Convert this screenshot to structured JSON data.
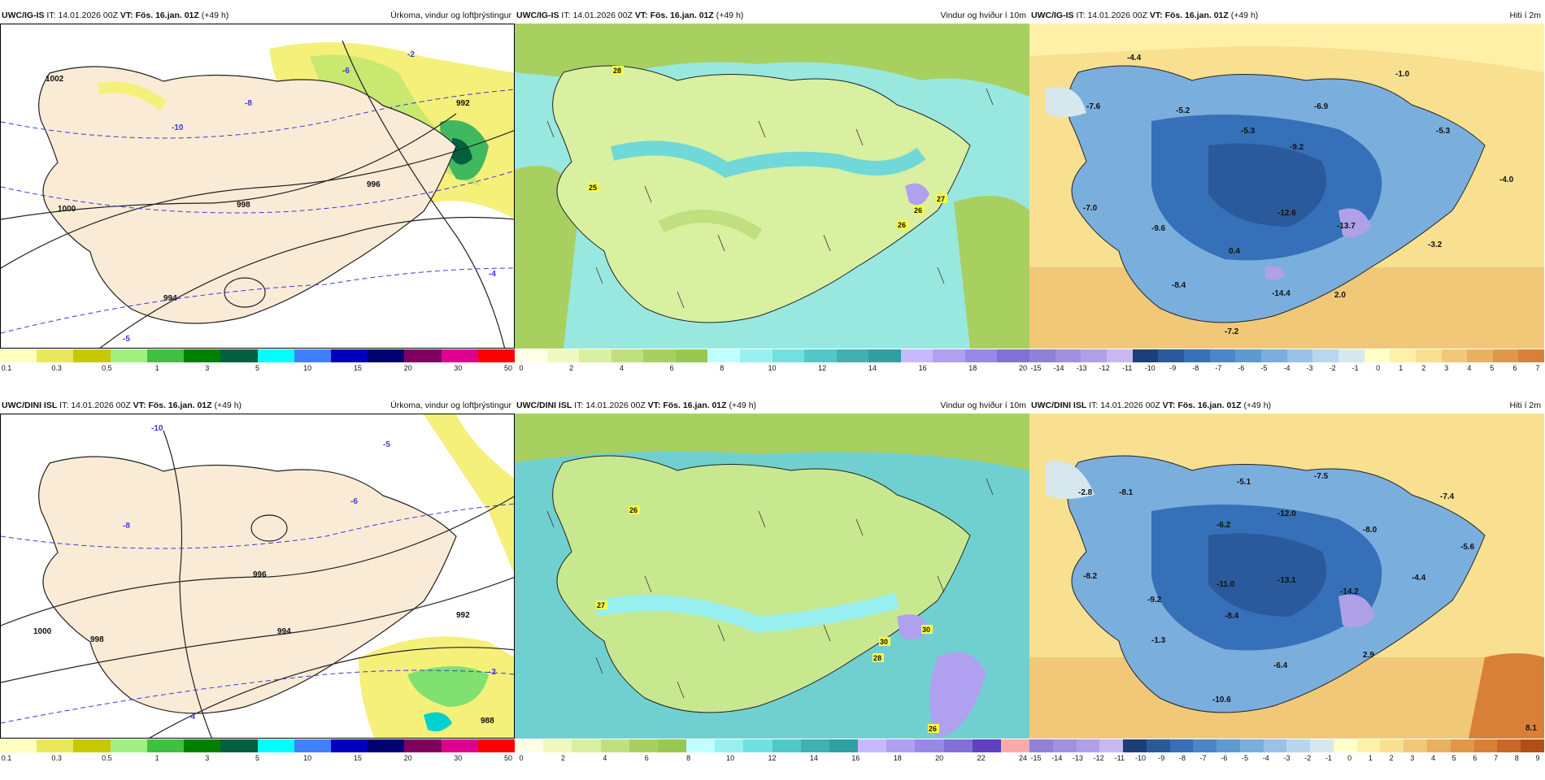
{
  "rows": [
    {
      "model": "UWC/IG-IS",
      "init_label": "IT:",
      "init_time": "14.01.2026 00Z",
      "valid_label": "VT:",
      "valid_time": "Fös. 16.jan. 01Z",
      "lead": "(+49 h)",
      "panels": {
        "precip": {
          "title": "Úrkoma, vindur og loftþrýstingur",
          "isobars": [
            "1002",
            "1000",
            "998",
            "996",
            "994",
            "992"
          ],
          "temps": [
            "-10",
            "-8",
            "-6",
            "-4",
            "-2",
            "-5"
          ]
        },
        "wind": {
          "title": "Vindur og hviður í 10m",
          "gusts": [
            "28",
            "25",
            "27",
            "26",
            "26"
          ]
        },
        "temp": {
          "title": "Hiti í 2m",
          "labels": [
            "-4.4",
            "-7.6",
            "-5.2",
            "-5.3",
            "-6.9",
            "-9.2",
            "-1.0",
            "-5.3",
            "-4.0",
            "-7.0",
            "-9.6",
            "-12.6",
            "-13.7",
            "0.4",
            "-3.2",
            "-8.4",
            "-14.4",
            "2.0",
            "-7.2"
          ]
        }
      }
    },
    {
      "model": "UWC/DINI ISL",
      "init_label": "IT:",
      "init_time": "14.01.2026 00Z",
      "valid_label": "VT:",
      "valid_time": "Fös. 16.jan. 01Z",
      "lead": "(+49 h)",
      "panels": {
        "precip": {
          "title": "Úrkoma, vindur og loftþrýstingur",
          "isobars": [
            "1000",
            "998",
            "996",
            "994",
            "992",
            "988"
          ],
          "temps": [
            "-10",
            "-8",
            "-6",
            "-4",
            "-2",
            "-5"
          ]
        },
        "wind": {
          "title": "Vindur og hviður í 10m",
          "gusts": [
            "26",
            "27",
            "30",
            "30",
            "28",
            "26"
          ]
        },
        "temp": {
          "title": "Hiti í 2m",
          "labels": [
            "-2.8",
            "-8.1",
            "-5.1",
            "-7.5",
            "-12.0",
            "-6.2",
            "-8.0",
            "-7.4",
            "-5.6",
            "-8.2",
            "-11.0",
            "-13.1",
            "-14.2",
            "-4.4",
            "-9.2",
            "-8.4",
            "-1.3",
            "-6.4",
            "2.9",
            "-10.6",
            "8.1"
          ]
        }
      }
    }
  ],
  "colorbars": {
    "precip": {
      "colors": [
        "#ffffc0",
        "#e8e85a",
        "#c8c800",
        "#a0f080",
        "#40c040",
        "#008000",
        "#006040",
        "#00ffff",
        "#4080ff",
        "#0000c0",
        "#000070",
        "#800060",
        "#e00090",
        "#ff0000"
      ],
      "ticks": [
        "0.1",
        "0.3",
        "0.5",
        "1",
        "3",
        "5",
        "10",
        "15",
        "20",
        "30",
        "50"
      ]
    },
    "wind_top": {
      "colors": [
        "#ffffe8",
        "#f0f8c0",
        "#d8f0a0",
        "#c0e080",
        "#a8d060",
        "#98c850",
        "#c0ffff",
        "#98f0f0",
        "#70e0e0",
        "#50c8c8",
        "#40b0b0",
        "#30a0a0",
        "#c8b8ff",
        "#b0a0f0",
        "#9888e8",
        "#8070d8"
      ],
      "ticks": [
        "0",
        "2",
        "4",
        "6",
        "8",
        "10",
        "12",
        "14",
        "16",
        "18",
        "20"
      ]
    },
    "wind_bottom": {
      "colors": [
        "#ffffe8",
        "#f0f8c0",
        "#d8f0a0",
        "#c0e080",
        "#a8d060",
        "#98c850",
        "#c0ffff",
        "#98f0f0",
        "#70e0e0",
        "#50c8c8",
        "#40b0b0",
        "#30a0a0",
        "#c8b8ff",
        "#b0a0f0",
        "#9888e8",
        "#8070d8",
        "#6040c0",
        "#ffa8a8"
      ],
      "ticks": [
        "0",
        "2",
        "4",
        "6",
        "8",
        "10",
        "12",
        "14",
        "16",
        "18",
        "20",
        "22",
        "24"
      ]
    },
    "temp_top": {
      "colors": [
        "#9080d8",
        "#a090e0",
        "#b0a0e8",
        "#c8b8f0",
        "#1c3f7a",
        "#2a5a9c",
        "#3570b8",
        "#4a86c8",
        "#5e9ad2",
        "#7aaedd",
        "#98c2e6",
        "#b8d6ee",
        "#d6e8ee",
        "#ffffc8",
        "#fff0a8",
        "#f8e090",
        "#f0c878",
        "#e8b060",
        "#e09848",
        "#d88038"
      ],
      "ticks": [
        "-15",
        "-14",
        "-13",
        "-12",
        "-11",
        "-10",
        "-9",
        "-8",
        "-7",
        "-6",
        "-5",
        "-4",
        "-3",
        "-2",
        "-1",
        "0",
        "1",
        "2",
        "3",
        "4",
        "5",
        "6",
        "7"
      ]
    },
    "temp_bottom": {
      "colors": [
        "#9080d8",
        "#a090e0",
        "#b0a0e8",
        "#c8b8f0",
        "#1c3f7a",
        "#2a5a9c",
        "#3570b8",
        "#4a86c8",
        "#5e9ad2",
        "#7aaedd",
        "#98c2e6",
        "#b8d6ee",
        "#d6e8ee",
        "#ffffc8",
        "#fff0a8",
        "#f8e090",
        "#f0c878",
        "#e8b060",
        "#e09848",
        "#d88038",
        "#c86828",
        "#b05018"
      ],
      "ticks": [
        "-15",
        "-14",
        "-13",
        "-12",
        "-11",
        "-10",
        "-9",
        "-8",
        "-7",
        "-6",
        "-5",
        "-4",
        "-3",
        "-2",
        "-1",
        "0",
        "1",
        "2",
        "3",
        "4",
        "5",
        "6",
        "7",
        "8",
        "9"
      ]
    }
  }
}
